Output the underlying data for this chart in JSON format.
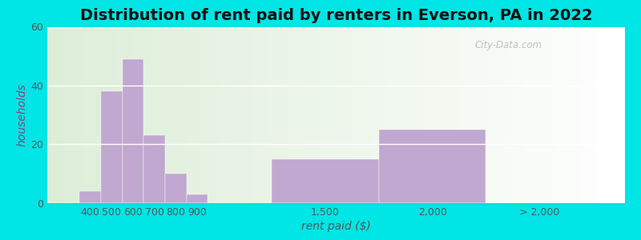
{
  "title": "Distribution of rent paid by renters in Everson, PA in 2022",
  "xlabel": "rent paid ($)",
  "ylabel": "households",
  "bar_lefts": [
    350,
    450,
    550,
    650,
    750,
    850,
    1250,
    1750,
    2250
  ],
  "bar_rights": [
    450,
    550,
    650,
    750,
    850,
    950,
    1750,
    2250,
    2750
  ],
  "bar_heights": [
    4,
    38,
    49,
    23,
    10,
    3,
    15,
    25,
    0
  ],
  "xtick_positions": [
    400,
    500,
    600,
    700,
    800,
    900,
    1500,
    2000
  ],
  "xtick_labels": [
    "400",
    "500",
    "600",
    "700",
    "800",
    "900",
    "1,500",
    "2,000"
  ],
  "xtick_extra_pos": 2500,
  "xtick_extra_label": "> 2,000",
  "bar_color": "#c0a8d0",
  "ylim": [
    0,
    60
  ],
  "yticks": [
    0,
    20,
    40,
    60
  ],
  "xlim": [
    200,
    2900
  ],
  "background_color": "#00e5e5",
  "plot_bg_color": "#edf2e4",
  "title_fontsize": 14,
  "axis_label_fontsize": 10,
  "tick_fontsize": 9,
  "watermark_text": "City-Data.com"
}
